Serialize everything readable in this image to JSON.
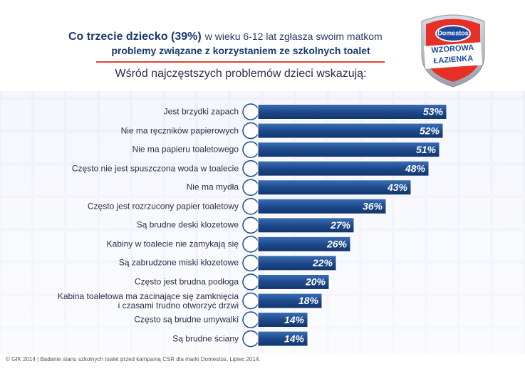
{
  "chart_data": {
    "type": "bar",
    "title": "Co trzecie dziecko (39%)",
    "title_rest": "w wieku 6-12 lat zgłasza swoim matkom",
    "title_line2": "problemy związane z korzystaniem ze szkolnych toalet",
    "subtitle": "Wśród najczęstszych problemów dzieci wskazują:",
    "badge": {
      "brand": "Domestos",
      "line1": "WZOROWA",
      "line2": "ŁAZIENKA"
    },
    "categories": [
      "Jest brzydki zapach",
      "Nie ma ręczników papierowych",
      "Nie ma papieru toaletowego",
      "Często nie jest spuszczona woda w toalecie",
      "Nie ma mydła",
      "Często jest rozrzucony papier toaletowy",
      "Są brudne deski klozetowe",
      "Kabiny w toalecie nie zamykają się",
      "Są zabrudzone miski klozetowe",
      "Często jest brudna podłoga",
      "Kabina toaletowa ma zacinające się zamknięcia\ni czasami trudno otworzyć drzwi",
      "Często są brudne umywalki",
      "Są brudne ściany"
    ],
    "values": [
      53,
      52,
      51,
      48,
      43,
      36,
      27,
      26,
      22,
      20,
      18,
      14,
      14
    ],
    "value_labels": [
      "53%",
      "52%",
      "51%",
      "48%",
      "43%",
      "36%",
      "27%",
      "26%",
      "22%",
      "20%",
      "18%",
      "14%",
      "14%"
    ],
    "color": "#1d4a8c",
    "footnote": "© GfK 2014 | Badanie stanu szkolnych toalet przed kampanią CSR dla marki Domestos, Lipiec 2014."
  }
}
